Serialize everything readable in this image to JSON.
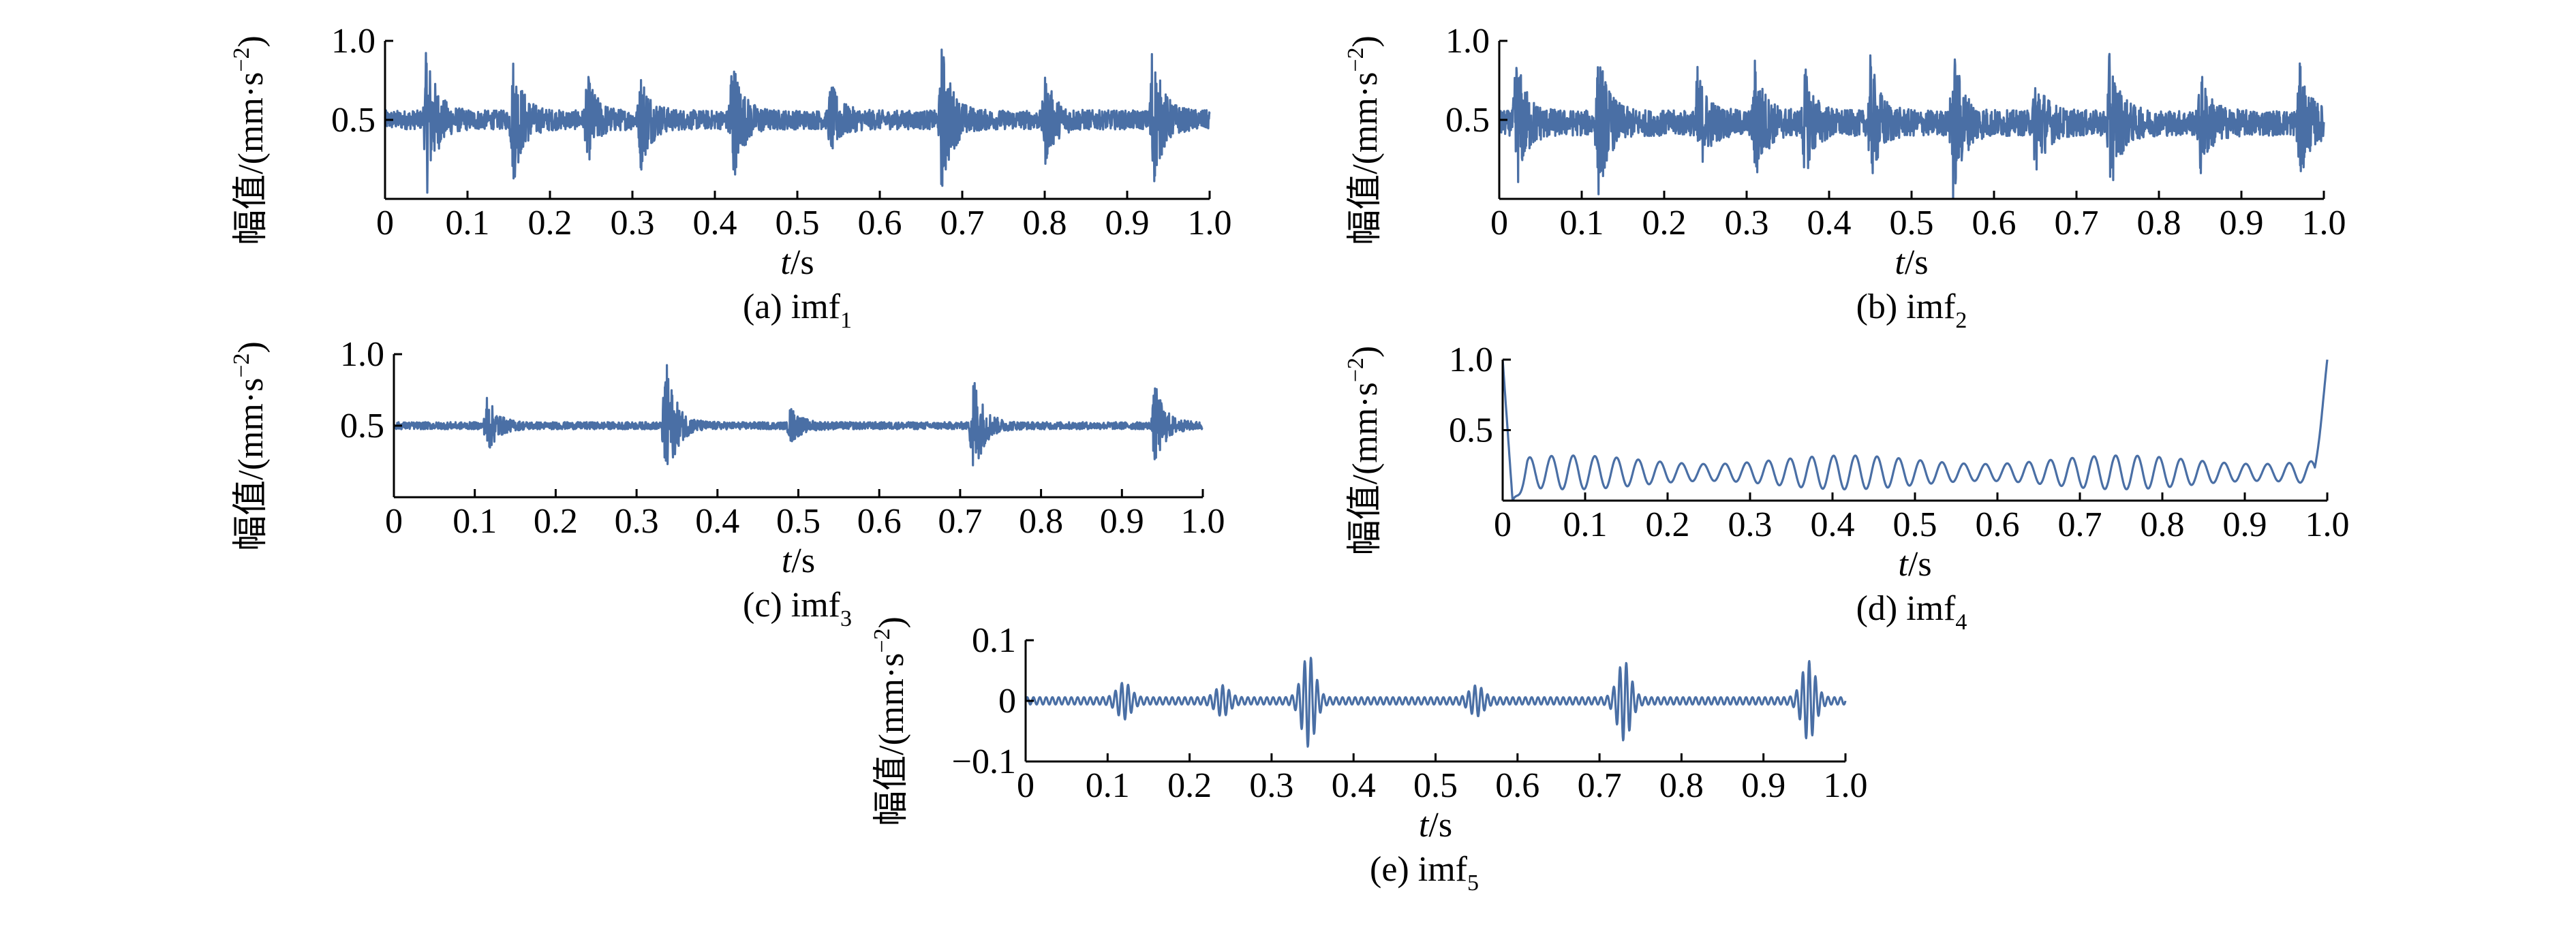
{
  "colors": {
    "signal": "#4a6fa5",
    "axis": "#000000",
    "text": "#000000"
  },
  "chart_data": [
    {
      "type": "line",
      "caption": "(a) imf",
      "caption_sub": "1",
      "xlabel_var": "t",
      "xlabel_unit": "/s",
      "ylabel": "幅值/(mm·s",
      "ylabel_sup": "−2",
      "ylabel_end": ")",
      "xlim": [
        0,
        1.0
      ],
      "ylim": [
        0.0,
        1.0
      ],
      "xticks": [
        "0",
        "0.1",
        "0.2",
        "0.3",
        "0.4",
        "0.5",
        "0.6",
        "0.7",
        "0.8",
        "0.9",
        "1.0"
      ],
      "yticks": [
        {
          "v": 1.0,
          "label": "1.0"
        },
        {
          "v": 0.5,
          "label": "0.5"
        }
      ],
      "signal": {
        "kind": "noise_bursts",
        "baseline": 0.5,
        "noise": 0.06,
        "bursts": [
          [
            0.05,
            0.45
          ],
          [
            0.155,
            0.38
          ],
          [
            0.245,
            0.25
          ],
          [
            0.31,
            0.28
          ],
          [
            0.42,
            0.42
          ],
          [
            0.54,
            0.2
          ],
          [
            0.675,
            0.45
          ],
          [
            0.8,
            0.25
          ],
          [
            0.93,
            0.45
          ]
        ]
      }
    },
    {
      "type": "line",
      "caption": "(b) imf",
      "caption_sub": "2",
      "xlabel_var": "t",
      "xlabel_unit": "/s",
      "ylabel": "幅值/(mm·s",
      "ylabel_sup": "−2",
      "ylabel_end": ")",
      "xlim": [
        0,
        1.0
      ],
      "ylim": [
        0.0,
        1.0
      ],
      "xticks": [
        "0",
        "0.1",
        "0.2",
        "0.3",
        "0.4",
        "0.5",
        "0.6",
        "0.7",
        "0.8",
        "0.9",
        "1.0"
      ],
      "yticks": [
        {
          "v": 1.0,
          "label": "1.0"
        },
        {
          "v": 0.5,
          "label": "0.5"
        }
      ],
      "signal": {
        "kind": "noise_bursts",
        "baseline": 0.48,
        "noise": 0.08,
        "bursts": [
          [
            0.02,
            0.4
          ],
          [
            0.12,
            0.42
          ],
          [
            0.24,
            0.3
          ],
          [
            0.31,
            0.35
          ],
          [
            0.37,
            0.3
          ],
          [
            0.45,
            0.35
          ],
          [
            0.55,
            0.45
          ],
          [
            0.65,
            0.3
          ],
          [
            0.74,
            0.42
          ],
          [
            0.85,
            0.28
          ],
          [
            0.97,
            0.32
          ]
        ]
      }
    },
    {
      "type": "line",
      "caption": "(c) imf",
      "caption_sub": "3",
      "xlabel_var": "t",
      "xlabel_unit": "/s",
      "ylabel": "幅值/(mm·s",
      "ylabel_sup": "−2",
      "ylabel_end": ")",
      "xlim": [
        0,
        1.0
      ],
      "ylim": [
        0.0,
        1.0
      ],
      "xticks": [
        "0",
        "0.1",
        "0.2",
        "0.3",
        "0.4",
        "0.5",
        "0.6",
        "0.7",
        "0.8",
        "0.9",
        "1.0"
      ],
      "yticks": [
        {
          "v": 1.0,
          "label": "1.0"
        },
        {
          "v": 0.5,
          "label": "0.5"
        }
      ],
      "signal": {
        "kind": "noise_bursts",
        "baseline": 0.5,
        "noise": 0.025,
        "bursts": [
          [
            0.115,
            0.2
          ],
          [
            0.335,
            0.5
          ],
          [
            0.49,
            0.12
          ],
          [
            0.715,
            0.42
          ],
          [
            0.94,
            0.3
          ]
        ]
      }
    },
    {
      "type": "line",
      "caption": "(d) imf",
      "caption_sub": "4",
      "xlabel_var": "t",
      "xlabel_unit": "/s",
      "ylabel": "幅值/(mm·s",
      "ylabel_sup": "−2",
      "ylabel_end": ")",
      "xlim": [
        0,
        1.0
      ],
      "ylim": [
        0.0,
        1.0
      ],
      "xticks": [
        "0",
        "0.1",
        "0.2",
        "0.3",
        "0.4",
        "0.5",
        "0.6",
        "0.7",
        "0.8",
        "0.9",
        "1.0"
      ],
      "yticks": [
        {
          "v": 1.0,
          "label": "1.0"
        },
        {
          "v": 0.5,
          "label": "0.5"
        }
      ],
      "signal": {
        "kind": "smooth_osc",
        "baseline": 0.2,
        "amplitude": 0.12,
        "cycles": 38,
        "start_value": 1.0,
        "end_value": 1.0
      }
    },
    {
      "type": "line",
      "caption": "(e) imf",
      "caption_sub": "5",
      "xlabel_var": "t",
      "xlabel_unit": "/s",
      "ylabel": "幅值/(mm·s",
      "ylabel_sup": "−2",
      "ylabel_end": ")",
      "xlim": [
        0,
        1.0
      ],
      "ylim": [
        -0.1,
        0.1
      ],
      "xticks": [
        "0",
        "0.1",
        "0.2",
        "0.3",
        "0.4",
        "0.5",
        "0.6",
        "0.7",
        "0.8",
        "0.9",
        "1.0"
      ],
      "yticks": [
        {
          "v": 0.1,
          "label": "0.1"
        },
        {
          "v": 0,
          "label": "0"
        },
        {
          "v": -0.1,
          "label": "−0.1"
        }
      ],
      "signal": {
        "kind": "wave_bursts",
        "baseline": 0.0,
        "noise": 0.006,
        "cycles": 130,
        "bursts": [
          [
            0.12,
            0.025
          ],
          [
            0.24,
            0.02
          ],
          [
            0.345,
            0.07
          ],
          [
            0.55,
            0.02
          ],
          [
            0.73,
            0.06
          ],
          [
            0.955,
            0.06
          ]
        ]
      }
    }
  ]
}
